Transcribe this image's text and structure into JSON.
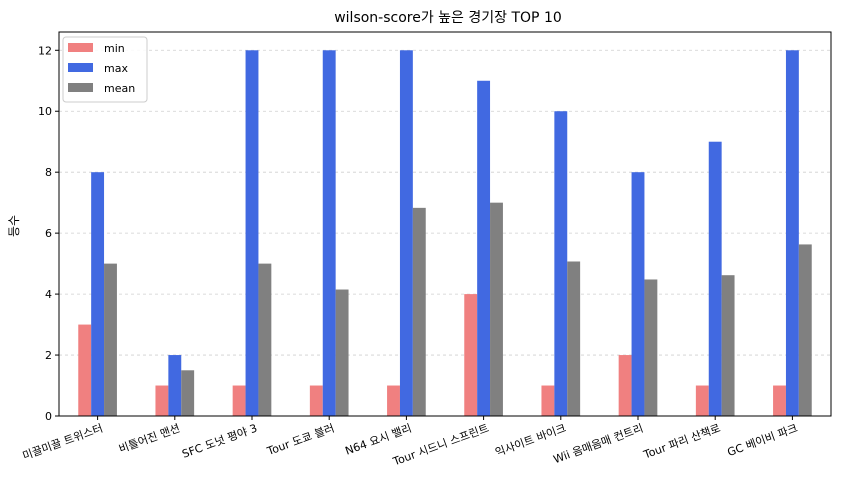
{
  "chart_data": {
    "type": "bar",
    "title": "wilson-score가 높은 경기장 TOP 10",
    "xlabel": "",
    "ylabel": "등수",
    "ylim": [
      0,
      12.6
    ],
    "yticks": [
      0,
      2,
      4,
      6,
      8,
      10,
      12
    ],
    "grid": true,
    "legend_position": "top-left",
    "categories": [
      "미끌미끌 트위스터",
      "비틀어진 맨션",
      "SFC 도넛 평야 3",
      "Tour 도쿄 블러",
      "N64 요시 밸리",
      "Tour 시드니 스프린트",
      "익사이트 바이크",
      "Wii 음매음매 컨트리",
      "Tour 파리 산책로",
      "GC 베이비 파크"
    ],
    "series": [
      {
        "name": "min",
        "color": "#f08080",
        "values": [
          3,
          1,
          1,
          1,
          1,
          4,
          1,
          2,
          1,
          1
        ]
      },
      {
        "name": "max",
        "color": "#4169e1",
        "values": [
          8,
          2,
          12,
          12,
          12,
          11,
          10,
          8,
          9,
          12
        ]
      },
      {
        "name": "mean",
        "color": "#808080",
        "values": [
          5.0,
          1.5,
          5.0,
          4.15,
          6.83,
          7.0,
          5.07,
          4.48,
          4.62,
          5.63
        ]
      }
    ]
  }
}
